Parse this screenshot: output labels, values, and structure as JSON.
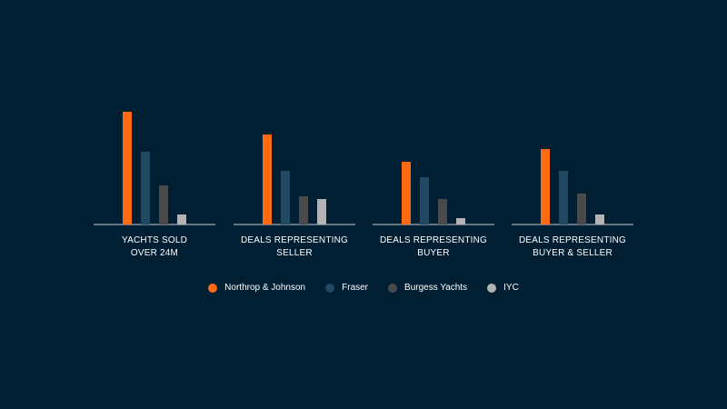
{
  "chart_data": {
    "type": "bar",
    "title": "",
    "xlabel": "",
    "ylabel": "",
    "ylim": [
      0,
      130
    ],
    "grid": false,
    "legend_position": "bottom-center",
    "categories": [
      "YACHTS SOLD\nOVER 24M",
      "DEALS REPRESENTING\nSELLER",
      "DEALS REPRESENTING\nBUYER",
      "DEALS REPRESENTING\nBUYER & SELLER"
    ],
    "series": [
      {
        "name": "Northrop & Johnson",
        "color": "#ff6a13",
        "values": [
          124,
          99,
          69,
          83
        ]
      },
      {
        "name": "Fraser",
        "color": "#1f4a61",
        "values": [
          80,
          59,
          52,
          59
        ]
      },
      {
        "name": "Burgess Yachts",
        "color": "#4a4a4a",
        "values": [
          43,
          31,
          28,
          34
        ]
      },
      {
        "name": "IYC",
        "color": "#b3b3b3",
        "values": [
          11,
          28,
          7,
          11
        ]
      }
    ]
  }
}
